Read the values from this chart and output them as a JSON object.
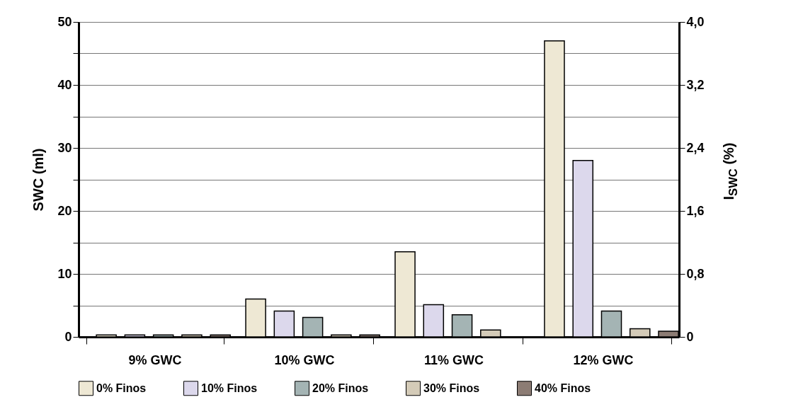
{
  "chart_data": {
    "type": "bar",
    "categories": [
      "9% GWC",
      "10% GWC",
      "11% GWC",
      "12% GWC"
    ],
    "ylabel": "SWC (ml)",
    "y2label": "I$_{SWC}$ (%)",
    "series": [
      {
        "name": "0% Finos",
        "color": "#eee8d4",
        "values": [
          0.3,
          6,
          13.5,
          47
        ]
      },
      {
        "name": "10% Finos",
        "color": "#dcd8ec",
        "values": [
          0.3,
          4.1,
          5.1,
          28
        ]
      },
      {
        "name": "20% Finos",
        "color": "#a4b4b4",
        "values": [
          0.3,
          3.1,
          3.5,
          4.1
        ]
      },
      {
        "name": "30% Finos",
        "color": "#d4cbb8",
        "values": [
          0.3,
          0.3,
          1.1,
          1.3
        ]
      },
      {
        "name": "40% Finos",
        "color": "#8c7c74",
        "values": [
          0.3,
          0.3,
          null,
          0.9
        ]
      }
    ],
    "ylim": [
      0,
      50
    ],
    "yticks": [
      0,
      {
        "value": 5,
        "label": null
      },
      10,
      {
        "value": 15,
        "label": null
      },
      20,
      {
        "value": 25,
        "label": null
      },
      30,
      {
        "value": 35,
        "label": null
      },
      40,
      {
        "value": 45,
        "label": null
      },
      50
    ],
    "y2lim": [
      0,
      4
    ],
    "y2ticks": [
      0,
      {
        "value": 0.8,
        "label": "0,8"
      },
      {
        "value": 1.6,
        "label": "1,6"
      },
      {
        "value": 2.4,
        "label": "2,4"
      },
      {
        "value": 3.2,
        "label": "3,2"
      },
      {
        "value": 4,
        "label": "4,0"
      }
    ],
    "grid": "y",
    "legend": "bottom"
  }
}
